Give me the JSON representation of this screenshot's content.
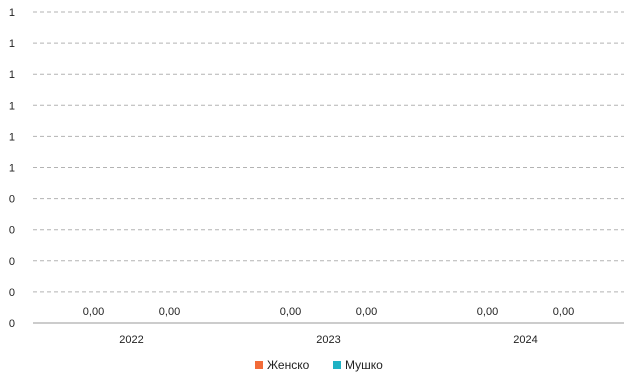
{
  "chart_data": {
    "type": "bar",
    "title": "",
    "xlabel": "",
    "ylabel": "",
    "categories": [
      "2022",
      "2023",
      "2024"
    ],
    "y_ticks": [
      "0",
      "0",
      "0",
      "0",
      "0",
      "1",
      "1",
      "1",
      "1",
      "1",
      "1"
    ],
    "ylim": [
      0,
      1
    ],
    "grid": true,
    "grid_style": "dashed",
    "legend_position": "bottom",
    "series": [
      {
        "name": "Женско",
        "color": "#f26b38",
        "values": [
          0,
          0,
          0
        ],
        "labels": [
          "0,00",
          "0,00",
          "0,00"
        ]
      },
      {
        "name": "Мушко",
        "color": "#1fb2c4",
        "values": [
          0,
          0,
          0
        ],
        "labels": [
          "0,00",
          "0,00",
          "0,00"
        ]
      }
    ]
  }
}
